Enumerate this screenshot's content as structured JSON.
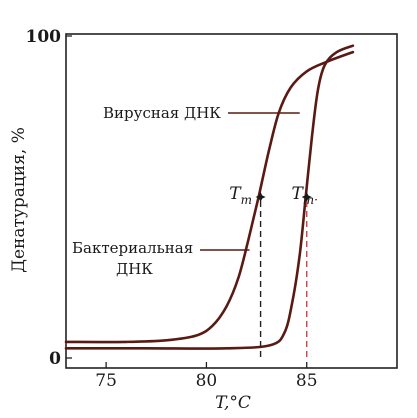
{
  "chart_data": {
    "type": "line",
    "title": "",
    "xlabel": "T,°C",
    "ylabel": "Денатурация, %",
    "xlim": [
      73,
      89.5
    ],
    "ylim": [
      0,
      100
    ],
    "x_ticks": [
      "75",
      "80",
      "85"
    ],
    "y_ticks": [
      "0",
      "100"
    ],
    "grid": false,
    "series": [
      {
        "name": "Бактериальная ДНК",
        "color": "#5a1a14",
        "x": [
          73,
          76,
          78,
          79.5,
          80.3,
          81,
          81.6,
          82.1,
          82.6,
          83.1,
          83.6,
          84.2,
          85,
          86,
          87.3
        ],
        "y": [
          5,
          5,
          5.5,
          7,
          10,
          16,
          25,
          37,
          50,
          64,
          76,
          84,
          89,
          92,
          95
        ]
      },
      {
        "name": "Вирусная ДНК",
        "color": "#5a1a14",
        "x": [
          73,
          77,
          81,
          83.2,
          83.9,
          84.3,
          84.65,
          84.95,
          85.25,
          85.55,
          85.9,
          86.5,
          87.3
        ],
        "y": [
          3,
          3,
          3,
          4,
          8,
          18,
          32,
          50,
          68,
          83,
          91,
          95,
          97
        ]
      }
    ],
    "tm_markers": [
      {
        "label": "T",
        "sub": "m",
        "x": 82.7,
        "y": 50
      },
      {
        "label": "T",
        "sub": "m·",
        "x": 85.0,
        "y": 50
      }
    ],
    "annotations": [
      {
        "text": "Вирусная ДНК",
        "target_series": 1
      },
      {
        "text": "Бактериальная",
        "text2": "ДНК",
        "target_series": 0
      }
    ]
  }
}
